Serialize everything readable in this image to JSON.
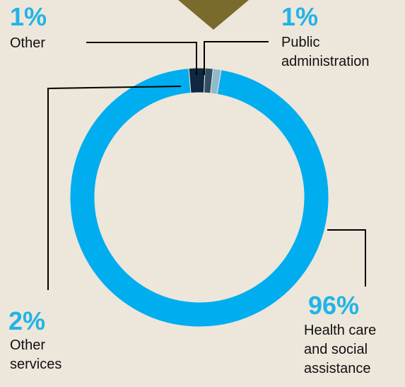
{
  "chart_data": {
    "type": "donut",
    "title": "",
    "slices": [
      {
        "label": "Health care\nand social\nassistance",
        "percent_label": "96%",
        "value": 96,
        "color": "#00adef"
      },
      {
        "label": "Other\nservices",
        "percent_label": "2%",
        "value": 2,
        "color": "#0f2740"
      },
      {
        "label": "Other",
        "percent_label": "1%",
        "value": 1,
        "color": "#2f4f63"
      },
      {
        "label": "Public\nadministration",
        "percent_label": "1%",
        "value": 1,
        "color": "#8fb9cc"
      }
    ]
  },
  "colors": {
    "background": "#ede6da",
    "percent_text": "#20b4e8",
    "marker": "#7a6a2c",
    "leader_line": "#000000"
  }
}
